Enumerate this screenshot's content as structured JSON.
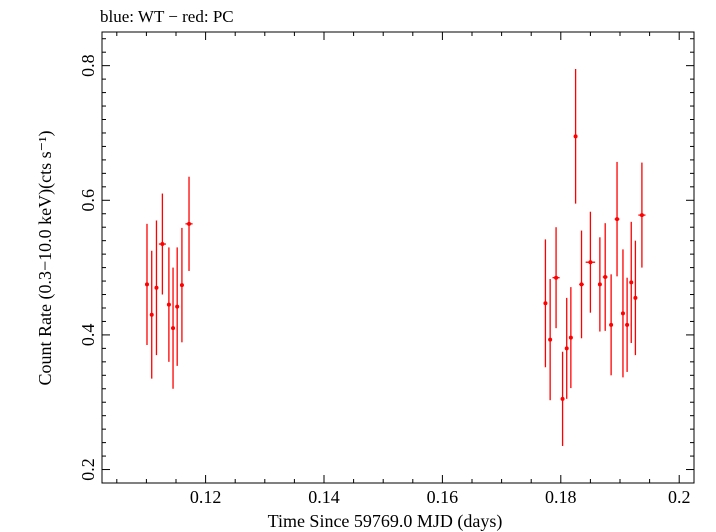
{
  "chart_data": {
    "type": "scatter",
    "title": "blue: WT − red: PC",
    "xlabel": "Time Since 59769.0 MJD (days)",
    "ylabel": "Count Rate (0.3−10.0 keV)(cts s⁻¹)",
    "xlim": [
      0.1025,
      0.2025
    ],
    "ylim": [
      0.18,
      0.85
    ],
    "xticks": [
      0.12,
      0.14,
      0.16,
      0.18,
      0.2
    ],
    "xtick_labels": [
      "0.12",
      "0.14",
      "0.16",
      "0.18",
      "0.2"
    ],
    "yticks": [
      0.2,
      0.4,
      0.6,
      0.8
    ],
    "ytick_labels": [
      "0.2",
      "0.4",
      "0.6",
      "0.8"
    ],
    "grid": false,
    "series": [
      {
        "color": "#ff0000",
        "points": [
          {
            "x": 0.1101,
            "xerr": 0.0003,
            "y": 0.475,
            "yerr": 0.09
          },
          {
            "x": 0.1109,
            "xerr": 0.0003,
            "y": 0.43,
            "yerr": 0.095
          },
          {
            "x": 0.1117,
            "xerr": 0.0003,
            "y": 0.47,
            "yerr": 0.1
          },
          {
            "x": 0.1127,
            "xerr": 0.0006,
            "y": 0.535,
            "yerr": 0.075
          },
          {
            "x": 0.1138,
            "xerr": 0.0003,
            "y": 0.445,
            "yerr": 0.085
          },
          {
            "x": 0.1145,
            "xerr": 0.0003,
            "y": 0.41,
            "yerr": 0.09
          },
          {
            "x": 0.1152,
            "xerr": 0.0003,
            "y": 0.442,
            "yerr": 0.088
          },
          {
            "x": 0.116,
            "xerr": 0.0003,
            "y": 0.474,
            "yerr": 0.085
          },
          {
            "x": 0.1172,
            "xerr": 0.0006,
            "y": 0.565,
            "yerr": 0.07
          },
          {
            "x": 0.1774,
            "xerr": 0.0003,
            "y": 0.447,
            "yerr": 0.095
          },
          {
            "x": 0.1782,
            "xerr": 0.0003,
            "y": 0.393,
            "yerr": 0.09
          },
          {
            "x": 0.1792,
            "xerr": 0.0006,
            "y": 0.485,
            "yerr": 0.075
          },
          {
            "x": 0.1803,
            "xerr": 0.0003,
            "y": 0.305,
            "yerr": 0.07
          },
          {
            "x": 0.181,
            "xerr": 0.0003,
            "y": 0.38,
            "yerr": 0.075
          },
          {
            "x": 0.1817,
            "xerr": 0.0003,
            "y": 0.396,
            "yerr": 0.075
          },
          {
            "x": 0.1825,
            "xerr": 0.0003,
            "y": 0.695,
            "yerr": 0.1
          },
          {
            "x": 0.1835,
            "xerr": 0.0004,
            "y": 0.475,
            "yerr": 0.08
          },
          {
            "x": 0.185,
            "xerr": 0.0008,
            "y": 0.508,
            "yerr": 0.075
          },
          {
            "x": 0.1866,
            "xerr": 0.0003,
            "y": 0.475,
            "yerr": 0.07
          },
          {
            "x": 0.1875,
            "xerr": 0.0004,
            "y": 0.486,
            "yerr": 0.08
          },
          {
            "x": 0.1885,
            "xerr": 0.0003,
            "y": 0.415,
            "yerr": 0.075
          },
          {
            "x": 0.1895,
            "xerr": 0.0004,
            "y": 0.572,
            "yerr": 0.085
          },
          {
            "x": 0.1905,
            "xerr": 0.0003,
            "y": 0.432,
            "yerr": 0.095
          },
          {
            "x": 0.1912,
            "xerr": 0.0003,
            "y": 0.415,
            "yerr": 0.07
          },
          {
            "x": 0.1919,
            "xerr": 0.0003,
            "y": 0.478,
            "yerr": 0.09
          },
          {
            "x": 0.1926,
            "xerr": 0.0003,
            "y": 0.455,
            "yerr": 0.085
          },
          {
            "x": 0.1937,
            "xerr": 0.0006,
            "y": 0.578,
            "yerr": 0.078
          }
        ]
      }
    ]
  }
}
